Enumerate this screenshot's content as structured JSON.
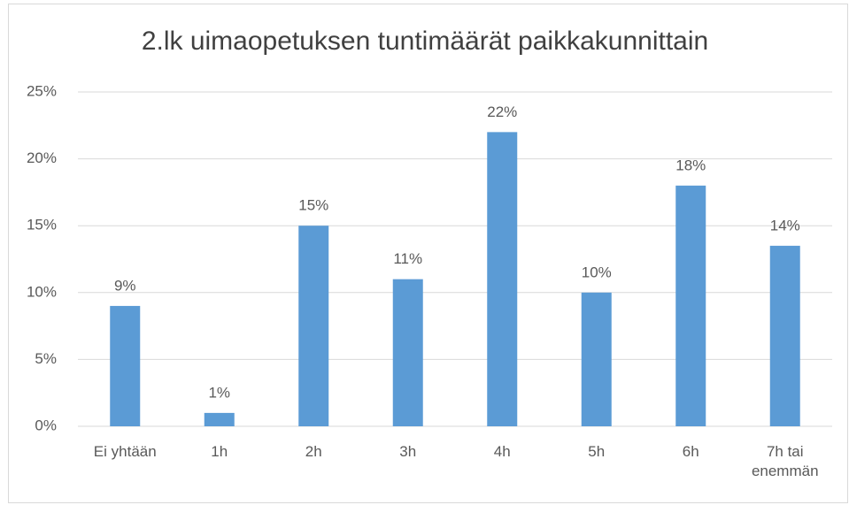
{
  "chart_data": {
    "type": "bar",
    "title": "2.lk uimaopetuksen tuntimäärät paikkakunnittain",
    "categories": [
      "Ei yhtään",
      "1h",
      "2h",
      "3h",
      "4h",
      "5h",
      "6h",
      "7h tai enemmän"
    ],
    "values": [
      9,
      1,
      15,
      11,
      22,
      10,
      18,
      13.5
    ],
    "value_labels": [
      "9%",
      "1%",
      "15%",
      "11%",
      "22%",
      "10%",
      "18%",
      "14%"
    ],
    "color": "#5b9bd5",
    "ylim": [
      0,
      25
    ],
    "yticks": [
      {
        "value": 0,
        "label": "0%"
      },
      {
        "value": 5,
        "label": "5%"
      },
      {
        "value": 10,
        "label": "10%"
      },
      {
        "value": 15,
        "label": "15%"
      },
      {
        "value": 20,
        "label": "20%"
      },
      {
        "value": 25,
        "label": "25%"
      }
    ],
    "grid": true
  }
}
